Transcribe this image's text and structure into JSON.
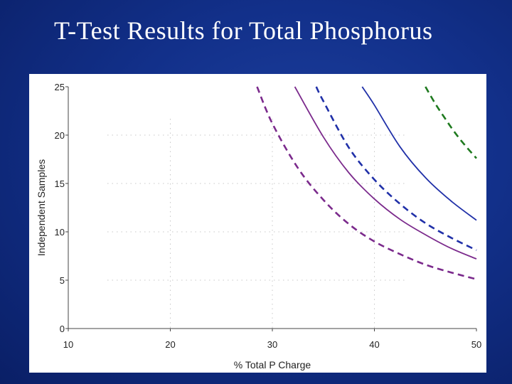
{
  "slide": {
    "title": "T-Test Results for Total Phosphorus"
  },
  "chart_data": {
    "type": "line",
    "title": "",
    "xlabel": "% Total P Charge",
    "ylabel": "Independent Samples",
    "xlim": [
      10,
      50
    ],
    "ylim": [
      0,
      25
    ],
    "x_ticks": [
      10,
      20,
      30,
      40,
      50
    ],
    "y_ticks": [
      0,
      5,
      10,
      15,
      20,
      25
    ],
    "grid": true,
    "series": [
      {
        "color": "#7b2a8c",
        "style": "dashed",
        "x": [
          28.5,
          30,
          32.5,
          35,
          37.5,
          40,
          42.5,
          45,
          47.5,
          50
        ],
        "y": [
          25,
          21.2,
          16.6,
          13.3,
          10.8,
          9.0,
          7.7,
          6.6,
          5.8,
          5.1
        ]
      },
      {
        "color": "#7b2a8c",
        "style": "solid",
        "x": [
          32.2,
          35,
          37.5,
          40,
          42.5,
          45,
          47.5,
          50
        ],
        "y": [
          25,
          19.8,
          16.1,
          13.4,
          11.3,
          9.7,
          8.3,
          7.2
        ]
      },
      {
        "color": "#2030a8",
        "style": "dashed",
        "x": [
          34.3,
          35,
          37.5,
          40,
          42.5,
          45,
          47.5,
          50
        ],
        "y": [
          25,
          23.5,
          18.7,
          15.4,
          12.9,
          10.9,
          9.4,
          8.1
        ]
      },
      {
        "color": "#2030a8",
        "style": "solid",
        "x": [
          38.8,
          40,
          42.5,
          45,
          47.5,
          50
        ],
        "y": [
          25,
          23.1,
          18.8,
          15.6,
          13.2,
          11.2
        ]
      },
      {
        "color": "#1f7a1f",
        "style": "dashed",
        "x": [
          45,
          46,
          47,
          48,
          49,
          50
        ],
        "y": [
          25,
          23.2,
          21.6,
          20.1,
          18.8,
          17.6
        ]
      }
    ]
  }
}
